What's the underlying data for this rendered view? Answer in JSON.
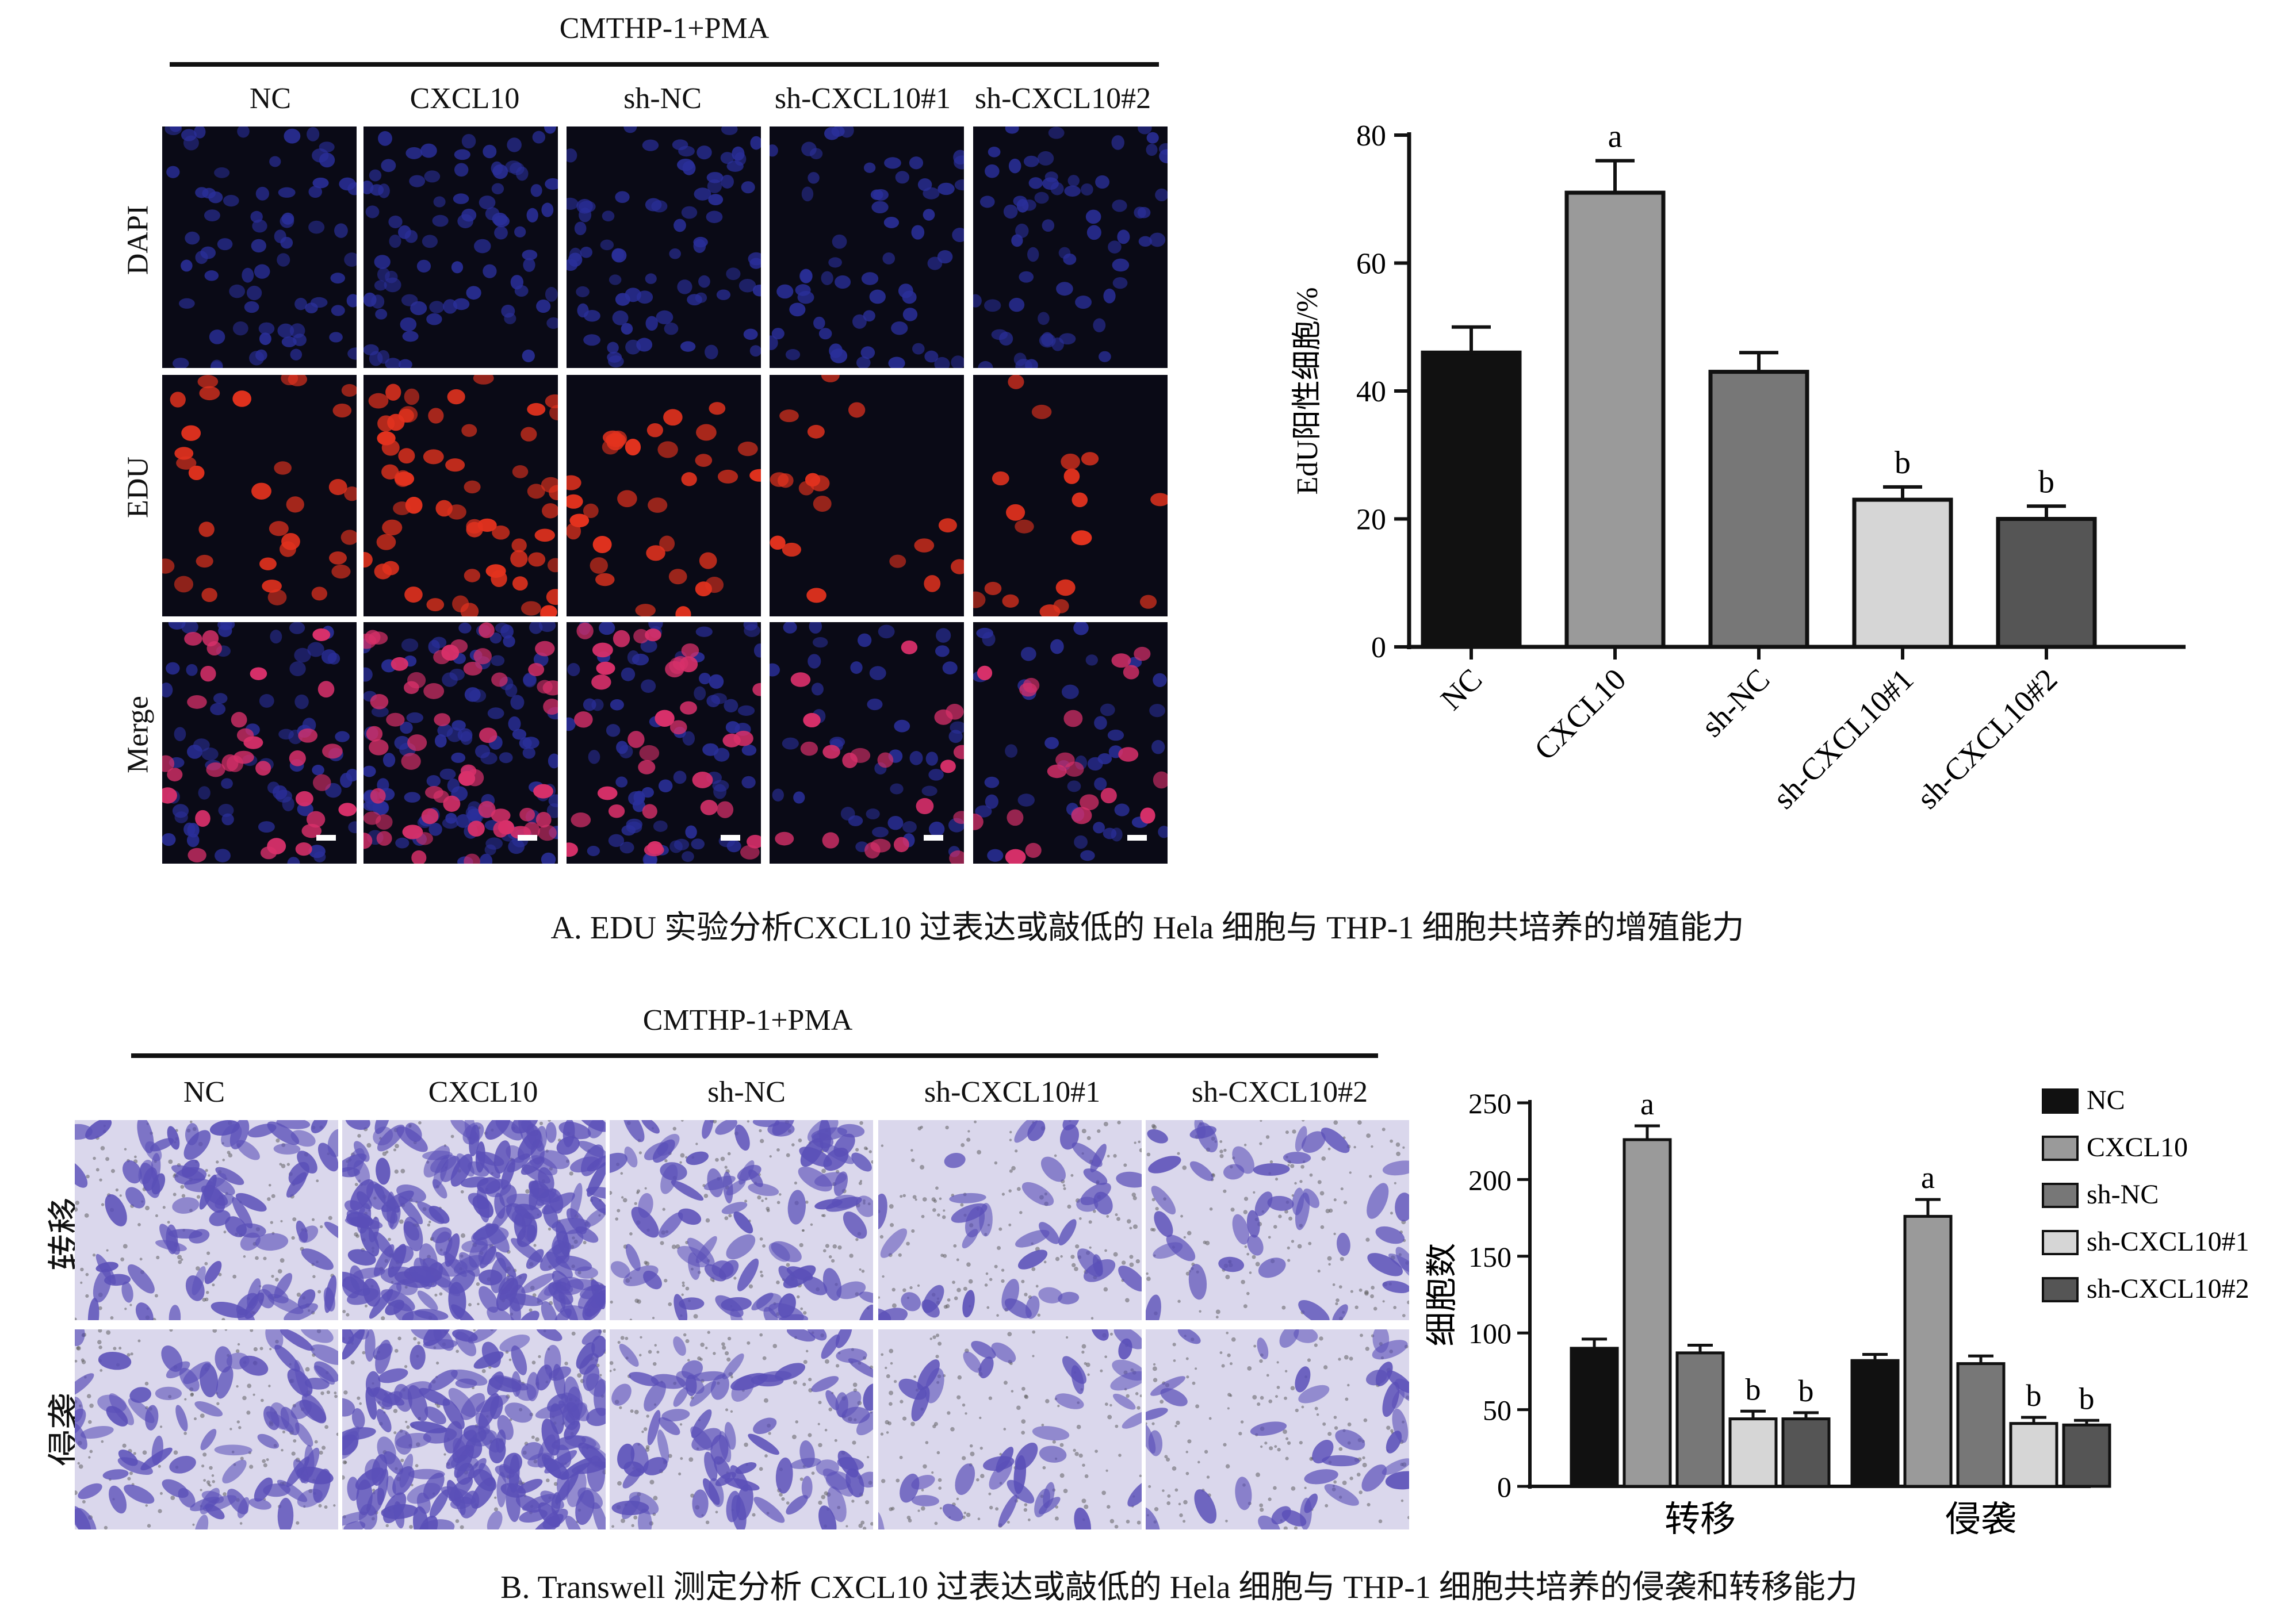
{
  "panel_a": {
    "group_label": "CMTHP-1+PMA",
    "columns": [
      "NC",
      "CXCL10",
      "sh-NC",
      "sh-CXCL10#1",
      "sh-CXCL10#2"
    ],
    "rows": [
      "DAPI",
      "EDU",
      "Merge"
    ],
    "caption": "A. EDU 实验分析CXCL10 过表达或敲低的 Hela 细胞与 THP-1 细胞共培养的增殖能力"
  },
  "panel_b": {
    "group_label": "CMTHP-1+PMA",
    "columns": [
      "NC",
      "CXCL10",
      "sh-NC",
      "sh-CXCL10#1",
      "sh-CXCL10#2"
    ],
    "rows": [
      "转移",
      "侵袭"
    ],
    "caption": "B. Transwell 测定分析 CXCL10 过表达或敲低的 Hela 细胞与 THP-1 细胞共培养的侵袭和转移能力"
  },
  "colors": {
    "dapi_blue": "#2a2f9a",
    "edu_red": "#e2321e",
    "stain_purple": "#5a4fb8",
    "nc_bar": "#111111",
    "cxcl10_bar": "#9a9a9a",
    "shnc_bar": "#777777",
    "sh1_bar": "#d6d6d6",
    "sh2_bar": "#555555"
  },
  "chart_data": [
    {
      "type": "bar",
      "categories": [
        "NC",
        "CXCL10",
        "sh-NC",
        "sh-CXCL10#1",
        "sh-CXCL10#2"
      ],
      "values": [
        46,
        71,
        43,
        23,
        20
      ],
      "errors": [
        4,
        5,
        3,
        2,
        2
      ],
      "annotations": [
        "",
        "a",
        "",
        "b",
        "b"
      ],
      "ylabel": "EdU阳性细胞/%",
      "xlabel": "",
      "ylim": [
        0,
        80
      ],
      "yticks": [
        0,
        20,
        40,
        60,
        80
      ],
      "colors": [
        "#111111",
        "#9a9a9a",
        "#777777",
        "#d6d6d6",
        "#555555"
      ]
    },
    {
      "type": "bar",
      "categories": [
        "转移",
        "侵袭"
      ],
      "series": [
        {
          "name": "NC",
          "values": [
            90,
            82
          ],
          "errors": [
            6,
            4
          ],
          "color": "#111111",
          "annotations": [
            "",
            ""
          ]
        },
        {
          "name": "CXCL10",
          "values": [
            226,
            176
          ],
          "errors": [
            9,
            11
          ],
          "color": "#9a9a9a",
          "annotations": [
            "a",
            "a"
          ]
        },
        {
          "name": "sh-NC",
          "values": [
            87,
            80
          ],
          "errors": [
            5,
            5
          ],
          "color": "#777777",
          "annotations": [
            "",
            ""
          ]
        },
        {
          "name": "sh-CXCL10#1",
          "values": [
            44,
            41
          ],
          "errors": [
            5,
            4
          ],
          "color": "#d6d6d6",
          "annotations": [
            "b",
            "b"
          ]
        },
        {
          "name": "sh-CXCL10#2",
          "values": [
            44,
            40
          ],
          "errors": [
            4,
            3
          ],
          "color": "#555555",
          "annotations": [
            "b",
            "b"
          ]
        }
      ],
      "ylabel": "细胞数",
      "xlabel": "",
      "ylim": [
        0,
        250
      ],
      "yticks": [
        0,
        50,
        100,
        150,
        200,
        250
      ],
      "legend_position": "right"
    }
  ]
}
